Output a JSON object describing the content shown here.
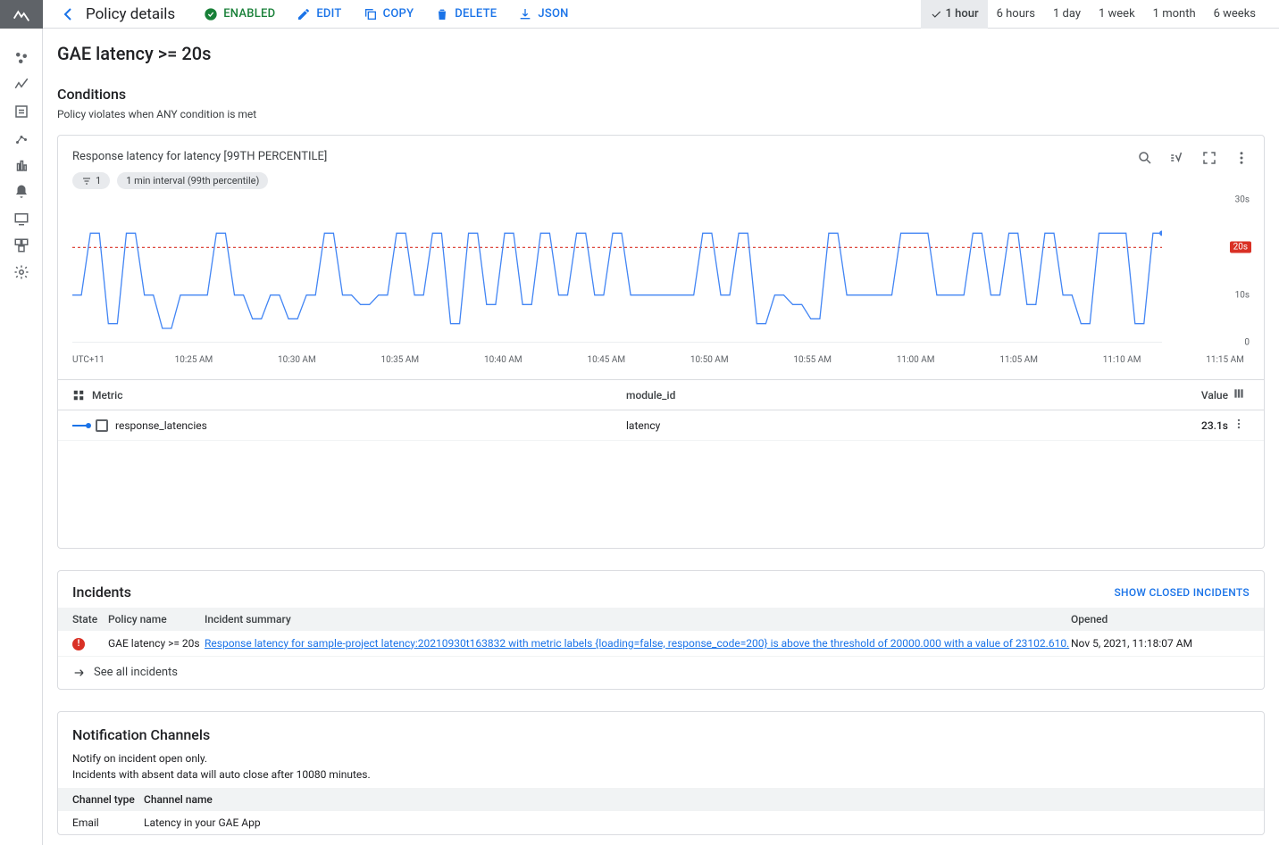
{
  "topbar": {
    "title": "Policy details",
    "actions": {
      "enabled": "Enabled",
      "edit": "Edit",
      "copy": "Copy",
      "delete": "Delete",
      "json": "JSON"
    },
    "range_tabs": [
      "1 hour",
      "6 hours",
      "1 day",
      "1 week",
      "1 month",
      "6 weeks"
    ],
    "range_active_index": 0
  },
  "page": {
    "title": "GAE latency >= 20s"
  },
  "conditions": {
    "title": "Conditions",
    "subtitle": "Policy violates when ANY condition is met"
  },
  "chart": {
    "title": "Response latency for latency [99TH PERCENTILE]",
    "chip_filter": "1",
    "chip_interval": "1 min interval (99th percentile)",
    "type": "line-step",
    "line_color": "#4285f4",
    "threshold_color": "#d93025",
    "background_color": "#ffffff",
    "axis_color": "#dadce0",
    "tick_color": "#5f6368",
    "y_ticks": [
      "30s",
      "10s",
      "0"
    ],
    "y_tick_values": [
      30,
      10,
      0
    ],
    "y_max": 30,
    "y_min": 0,
    "threshold_value": 20,
    "threshold_label": "20s",
    "x_timezone": "UTC+11",
    "x_ticks": [
      "10:25 AM",
      "10:30 AM",
      "10:35 AM",
      "10:40 AM",
      "10:45 AM",
      "10:50 AM",
      "10:55 AM",
      "11:00 AM",
      "11:05 AM",
      "11:10 AM",
      "11:15 AM"
    ],
    "series_values": [
      10,
      10,
      23,
      23,
      4,
      4,
      23,
      23,
      10,
      10,
      3,
      3,
      10,
      10,
      10,
      10,
      23,
      23,
      10,
      10,
      5,
      5,
      10,
      10,
      5,
      5,
      10,
      10,
      23,
      23,
      10,
      10,
      8,
      8,
      10,
      10,
      23,
      23,
      10,
      10,
      23,
      23,
      4,
      4,
      23,
      23,
      8,
      8,
      23,
      23,
      8,
      8,
      23,
      23,
      10,
      10,
      23,
      23,
      10,
      10,
      23,
      23,
      10,
      10,
      10,
      10,
      10,
      10,
      10,
      10,
      23,
      23,
      10,
      10,
      23,
      23,
      4,
      4,
      10,
      10,
      8,
      8,
      5,
      5,
      23,
      23,
      10,
      10,
      10,
      10,
      10,
      10,
      23,
      23,
      23,
      23,
      10,
      10,
      10,
      10,
      23,
      23,
      10,
      10,
      23,
      23,
      8,
      8,
      23,
      23,
      10,
      10,
      4,
      4,
      23,
      23,
      23,
      23,
      4,
      4,
      23,
      23
    ],
    "end_marker": true,
    "legend": {
      "header_metric": "Metric",
      "header_module": "module_id",
      "header_value": "Value",
      "rows": [
        {
          "metric": "response_latencies",
          "module": "latency",
          "value": "23.1s"
        }
      ]
    }
  },
  "incidents": {
    "title": "Incidents",
    "show_closed": "SHOW CLOSED INCIDENTS",
    "columns": {
      "state": "State",
      "policy": "Policy name",
      "summary": "Incident summary",
      "opened": "Opened"
    },
    "rows": [
      {
        "policy": "GAE latency >= 20s",
        "summary": "Response latency for sample-project latency:20210930t163832 with metric labels {loading=false, response_code=200} is above the threshold of 20000.000 with a value of 23102.610.",
        "opened": "Nov 5, 2021, 11:18:07 AM"
      }
    ],
    "see_all": "See all incidents"
  },
  "notification": {
    "title": "Notification Channels",
    "line1": "Notify on incident open only.",
    "line2": "Incidents with absent data will auto close after 10080 minutes.",
    "columns": {
      "type": "Channel type",
      "name": "Channel name"
    },
    "rows": [
      {
        "type": "Email",
        "name": "Latency in your GAE App"
      }
    ]
  }
}
